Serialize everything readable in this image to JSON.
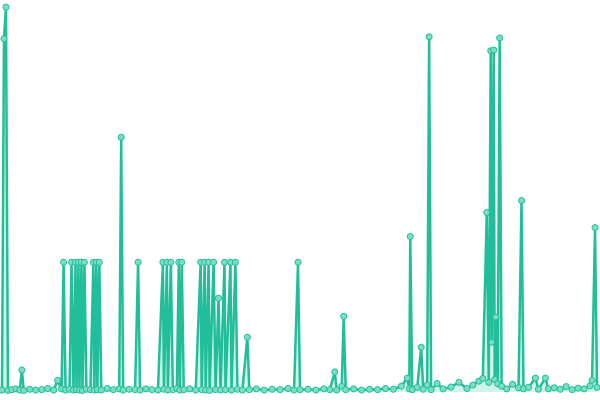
{
  "chart_data": {
    "type": "line",
    "x": [
      0,
      2,
      4,
      6,
      10,
      14,
      18,
      20,
      22,
      28,
      34,
      40,
      46,
      52,
      56,
      60,
      62,
      64,
      68,
      70,
      72,
      74,
      75,
      77,
      78,
      80,
      81,
      83,
      85,
      89,
      92,
      93,
      95,
      96,
      98,
      100,
      106,
      112,
      118,
      120,
      122,
      128,
      134,
      137,
      139,
      145,
      151,
      157,
      162,
      163,
      166,
      167,
      170,
      172,
      176,
      178,
      179,
      181,
      183,
      189,
      195,
      200,
      201,
      204,
      205,
      208,
      209,
      213,
      215,
      218,
      220,
      224,
      225,
      230,
      231,
      235,
      237,
      242,
      247,
      249,
      256,
      264,
      272,
      280,
      288,
      294,
      298,
      300,
      308,
      316,
      324,
      330,
      335,
      337,
      342,
      344,
      346,
      354,
      362,
      370,
      378,
      386,
      394,
      402,
      408,
      410,
      411,
      413,
      418,
      422,
      424,
      428,
      430,
      432,
      438,
      444,
      452,
      460,
      468,
      474,
      480,
      484,
      488,
      490,
      492,
      493,
      495,
      496,
      497,
      499,
      501,
      503,
      508,
      514,
      520,
      523,
      525,
      530,
      537,
      540,
      547,
      550,
      556,
      562,
      568,
      574,
      580,
      586,
      592,
      594,
      597,
      599
    ],
    "series": [
      {
        "color": "#20bf99",
        "marker_fill": "#7ddcc4",
        "values": [
          0.5,
          91.5,
          99.7,
          0.4,
          0.6,
          0.8,
          0.5,
          5.7,
          0.4,
          0.7,
          0.5,
          0.6,
          0.9,
          0.5,
          3,
          0.8,
          33.6,
          0.5,
          0.7,
          33.6,
          0.5,
          33.6,
          0.6,
          33.6,
          0.5,
          33.6,
          0.4,
          33.6,
          0.7,
          0.6,
          33.6,
          0.5,
          33.6,
          0.6,
          33.6,
          0.5,
          0.9,
          0.6,
          0.8,
          66,
          0.5,
          0.7,
          0.6,
          33.6,
          0.5,
          0.8,
          0.6,
          0.5,
          33.6,
          0.7,
          33.6,
          0.5,
          33.6,
          0.6,
          0.9,
          33.6,
          0.5,
          33.6,
          0.6,
          0.8,
          0.5,
          33.6,
          0.6,
          33.6,
          0.5,
          33.6,
          0.4,
          33.6,
          0.6,
          24.3,
          0.5,
          33.6,
          0.6,
          33.6,
          0.5,
          33.6,
          0.7,
          0.5,
          14.2,
          0.6,
          0.8,
          0.5,
          0.7,
          0.6,
          0.9,
          0.5,
          33.6,
          0.6,
          0.7,
          0.5,
          0.8,
          0.6,
          5.2,
          0.5,
          1.5,
          19.6,
          0.6,
          0.8,
          0.5,
          0.7,
          0.6,
          0.9,
          0.7,
          1.5,
          3.6,
          0.8,
          40.3,
          0.6,
          1.2,
          11.6,
          0.7,
          1.8,
          92,
          0.6,
          2.2,
          0.8,
          1.3,
          2.5,
          0.9,
          1.8,
          2.8,
          3.5,
          46.5,
          2.5,
          88.4,
          12.9,
          88.6,
          3.2,
          19.4,
          2.1,
          91.7,
          1.5,
          0.8,
          2,
          1.1,
          49.6,
          0.8,
          1.2,
          3.6,
          0.7,
          3.6,
          0.8,
          1.1,
          0.7,
          1.4,
          0.6,
          1,
          0.8,
          1.6,
          3,
          42.6,
          1.2
        ]
      }
    ],
    "xlim": [
      -2,
      602
    ],
    "ylim": [
      0,
      100
    ],
    "area": true
  }
}
